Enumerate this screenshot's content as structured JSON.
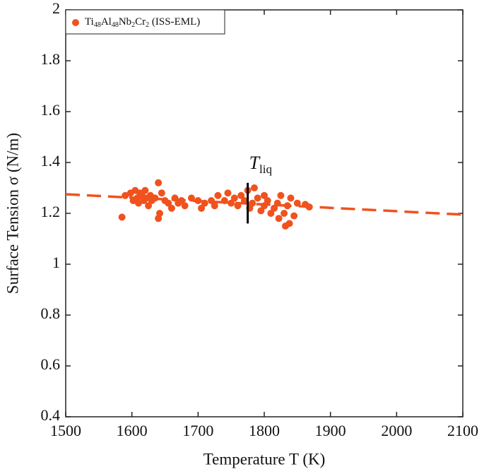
{
  "chart_data": {
    "type": "scatter",
    "x_label": "Temperature T (K)",
    "y_label": "Surface Tension σ (N/m)",
    "xlim": [
      1500,
      2100
    ],
    "ylim": [
      0.4,
      2
    ],
    "xticks": [
      1500,
      1600,
      1700,
      1800,
      1900,
      2000,
      2100
    ],
    "yticks": [
      0.4,
      0.6,
      0.8,
      1,
      1.2,
      1.4,
      1.6,
      1.8,
      2
    ],
    "legend": "upper left",
    "series": [
      {
        "name": "Ti48Al48Nb2Cr2 (ISS-EML)",
        "color": "#f0521e",
        "x": [
          1585,
          1590,
          1598,
          1602,
          1605,
          1608,
          1610,
          1612,
          1615,
          1618,
          1620,
          1622,
          1625,
          1628,
          1630,
          1635,
          1640,
          1640,
          1642,
          1645,
          1650,
          1655,
          1660,
          1665,
          1670,
          1675,
          1680,
          1690,
          1700,
          1705,
          1710,
          1720,
          1725,
          1730,
          1740,
          1745,
          1750,
          1755,
          1760,
          1765,
          1770,
          1775,
          1778,
          1782,
          1785,
          1790,
          1795,
          1800,
          1800,
          1805,
          1810,
          1815,
          1820,
          1822,
          1825,
          1830,
          1832,
          1835,
          1838,
          1840,
          1845,
          1850,
          1862,
          1868
        ],
        "values": [
          1.185,
          1.27,
          1.28,
          1.25,
          1.29,
          1.26,
          1.24,
          1.28,
          1.27,
          1.25,
          1.29,
          1.26,
          1.23,
          1.27,
          1.25,
          1.26,
          1.32,
          1.18,
          1.2,
          1.28,
          1.25,
          1.24,
          1.22,
          1.26,
          1.24,
          1.25,
          1.23,
          1.26,
          1.25,
          1.22,
          1.24,
          1.25,
          1.23,
          1.27,
          1.25,
          1.28,
          1.24,
          1.26,
          1.23,
          1.27,
          1.25,
          1.29,
          1.22,
          1.24,
          1.3,
          1.26,
          1.21,
          1.23,
          1.27,
          1.25,
          1.2,
          1.22,
          1.24,
          1.18,
          1.27,
          1.2,
          1.15,
          1.23,
          1.16,
          1.26,
          1.19,
          1.24,
          1.235,
          1.225
        ]
      },
      {
        "type": "line",
        "style": "dashed",
        "color": "#f0521e",
        "x": [
          1500,
          2100
        ],
        "values": [
          1.275,
          1.195
        ]
      }
    ],
    "vline": {
      "x": 1775,
      "ymin": 1.16,
      "ymax": 1.32,
      "color": "#000000",
      "label": "T",
      "subscript": "liq"
    }
  }
}
